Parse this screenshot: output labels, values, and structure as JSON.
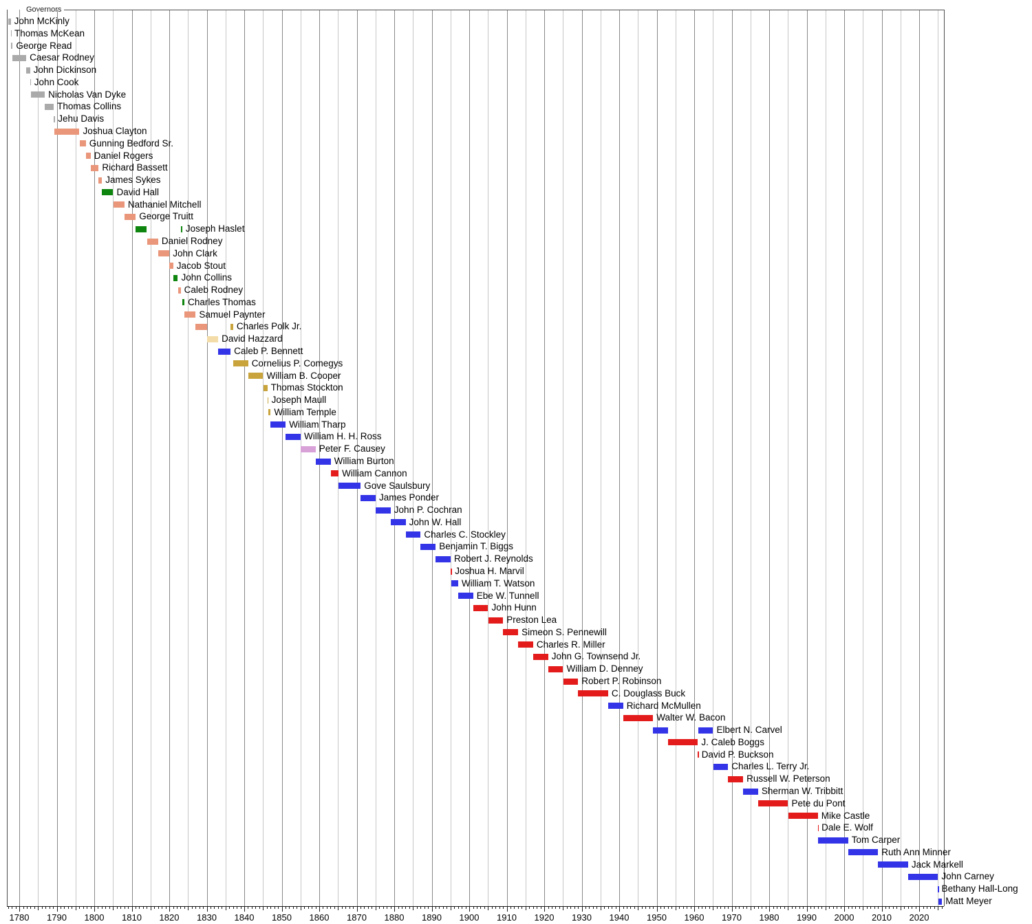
{
  "chart_data": {
    "type": "timeline",
    "title": "Governors",
    "xlabel": "",
    "ylabel": "",
    "x_axis": {
      "min": 1776.7,
      "max": 2026.6,
      "grid_step": 5,
      "minor_tick_step": 1,
      "label_step": 10,
      "tick_labels": [
        "1780",
        "1790",
        "1800",
        "1810",
        "1820",
        "1830",
        "1840",
        "1850",
        "1860",
        "1870",
        "1880",
        "1890",
        "1900",
        "1910",
        "1920",
        "1930",
        "1940",
        "1950",
        "1960",
        "1970",
        "1980",
        "1990",
        "2000",
        "2010",
        "2020"
      ]
    },
    "party_colors": {
      "pre_party": "#AAAAAA",
      "federalist": "#E9967A",
      "democratic_republican": "#0E850E",
      "whig": "#C9A43C",
      "national_republican": "#F3DCA8",
      "democratic": "#3333E8",
      "american": "#D8A2D8",
      "republican": "#E41B1B"
    },
    "grid_colors": {
      "decade": "#888888",
      "half_decade": "#C6C6C6"
    },
    "governors": [
      {
        "name": "John McKinly",
        "terms": [
          {
            "start": 1777.12,
            "end": 1777.72,
            "party": "pre_party"
          }
        ]
      },
      {
        "name": "Thomas McKean",
        "terms": [
          {
            "start": 1777.72,
            "end": 1777.8,
            "party": "pre_party"
          }
        ]
      },
      {
        "name": "George Read",
        "terms": [
          {
            "start": 1777.8,
            "end": 1778.24,
            "party": "pre_party"
          }
        ]
      },
      {
        "name": "Caesar Rodney",
        "terms": [
          {
            "start": 1778.24,
            "end": 1781.85,
            "party": "pre_party"
          }
        ]
      },
      {
        "name": "John Dickinson",
        "terms": [
          {
            "start": 1781.85,
            "end": 1782.86,
            "party": "pre_party"
          }
        ]
      },
      {
        "name": "John Cook",
        "terms": [
          {
            "start": 1782.86,
            "end": 1783.09,
            "party": "pre_party"
          }
        ]
      },
      {
        "name": "Nicholas Van Dyke",
        "terms": [
          {
            "start": 1783.09,
            "end": 1786.8,
            "party": "pre_party"
          }
        ]
      },
      {
        "name": "Thomas Collins",
        "terms": [
          {
            "start": 1786.8,
            "end": 1789.2,
            "party": "pre_party"
          }
        ]
      },
      {
        "name": "Jehu Davis",
        "terms": [
          {
            "start": 1789.2,
            "end": 1789.42,
            "party": "pre_party"
          }
        ]
      },
      {
        "name": "Joshua Clayton",
        "terms": [
          {
            "start": 1789.42,
            "end": 1796.05,
            "party": "federalist"
          }
        ]
      },
      {
        "name": "Gunning Bedford Sr.",
        "terms": [
          {
            "start": 1796.05,
            "end": 1797.75,
            "party": "federalist"
          }
        ]
      },
      {
        "name": "Daniel Rogers",
        "terms": [
          {
            "start": 1797.75,
            "end": 1799.05,
            "party": "federalist"
          }
        ]
      },
      {
        "name": "Richard Bassett",
        "terms": [
          {
            "start": 1799.05,
            "end": 1801.17,
            "party": "federalist"
          }
        ]
      },
      {
        "name": "James Sykes",
        "terms": [
          {
            "start": 1801.17,
            "end": 1802.05,
            "party": "federalist"
          }
        ]
      },
      {
        "name": "David Hall",
        "terms": [
          {
            "start": 1802.05,
            "end": 1805.05,
            "party": "democratic_republican"
          }
        ]
      },
      {
        "name": "Nathaniel Mitchell",
        "terms": [
          {
            "start": 1805.05,
            "end": 1808.05,
            "party": "federalist"
          }
        ]
      },
      {
        "name": "George Truitt",
        "terms": [
          {
            "start": 1808.05,
            "end": 1811.05,
            "party": "federalist"
          }
        ]
      },
      {
        "name": "Joseph Haslet",
        "terms": [
          {
            "start": 1811.05,
            "end": 1814.05,
            "party": "democratic_republican"
          },
          {
            "start": 1823.05,
            "end": 1823.47,
            "party": "democratic_republican"
          }
        ]
      },
      {
        "name": "Daniel Rodney",
        "terms": [
          {
            "start": 1814.05,
            "end": 1817.05,
            "party": "federalist"
          }
        ]
      },
      {
        "name": "John Clark",
        "terms": [
          {
            "start": 1817.05,
            "end": 1820.05,
            "party": "federalist"
          }
        ]
      },
      {
        "name": "Jacob Stout",
        "terms": [
          {
            "start": 1820.05,
            "end": 1821.05,
            "party": "federalist"
          }
        ]
      },
      {
        "name": "John Collins",
        "terms": [
          {
            "start": 1821.05,
            "end": 1822.29,
            "party": "democratic_republican"
          }
        ]
      },
      {
        "name": "Caleb Rodney",
        "terms": [
          {
            "start": 1822.29,
            "end": 1823.05,
            "party": "federalist"
          }
        ]
      },
      {
        "name": "Charles Thomas",
        "terms": [
          {
            "start": 1823.47,
            "end": 1824.05,
            "party": "democratic_republican"
          }
        ]
      },
      {
        "name": "Samuel Paynter",
        "terms": [
          {
            "start": 1824.05,
            "end": 1827.05,
            "party": "federalist"
          }
        ]
      },
      {
        "name": "Charles Polk Jr.",
        "terms": [
          {
            "start": 1827.05,
            "end": 1830.05,
            "party": "federalist"
          },
          {
            "start": 1836.35,
            "end": 1837.05,
            "party": "whig"
          }
        ]
      },
      {
        "name": "David Hazzard",
        "terms": [
          {
            "start": 1830.05,
            "end": 1833.05,
            "party": "national_republican"
          }
        ]
      },
      {
        "name": "Caleb P. Bennett",
        "terms": [
          {
            "start": 1833.05,
            "end": 1836.34,
            "party": "democratic"
          }
        ]
      },
      {
        "name": "Cornelius P. Comegys",
        "terms": [
          {
            "start": 1837.05,
            "end": 1841.05,
            "party": "whig"
          }
        ]
      },
      {
        "name": "William B. Cooper",
        "terms": [
          {
            "start": 1841.05,
            "end": 1845.05,
            "party": "whig"
          }
        ]
      },
      {
        "name": "Thomas Stockton",
        "terms": [
          {
            "start": 1845.05,
            "end": 1846.17,
            "party": "whig"
          }
        ]
      },
      {
        "name": "Joseph Maull",
        "terms": [
          {
            "start": 1846.17,
            "end": 1846.34,
            "party": "whig"
          }
        ]
      },
      {
        "name": "William Temple",
        "terms": [
          {
            "start": 1846.34,
            "end": 1847.05,
            "party": "whig"
          }
        ]
      },
      {
        "name": "William Tharp",
        "terms": [
          {
            "start": 1847.05,
            "end": 1851.05,
            "party": "democratic"
          }
        ]
      },
      {
        "name": "William H. H. Ross",
        "terms": [
          {
            "start": 1851.05,
            "end": 1855.05,
            "party": "democratic"
          }
        ]
      },
      {
        "name": "Peter F. Causey",
        "terms": [
          {
            "start": 1855.05,
            "end": 1859.05,
            "party": "american"
          }
        ]
      },
      {
        "name": "William Burton",
        "terms": [
          {
            "start": 1859.05,
            "end": 1863.05,
            "party": "democratic"
          }
        ]
      },
      {
        "name": "William Cannon",
        "terms": [
          {
            "start": 1863.05,
            "end": 1865.16,
            "party": "republican"
          }
        ]
      },
      {
        "name": "Gove Saulsbury",
        "terms": [
          {
            "start": 1865.16,
            "end": 1871.05,
            "party": "democratic"
          }
        ]
      },
      {
        "name": "James Ponder",
        "terms": [
          {
            "start": 1871.05,
            "end": 1875.05,
            "party": "democratic"
          }
        ]
      },
      {
        "name": "John P. Cochran",
        "terms": [
          {
            "start": 1875.05,
            "end": 1879.05,
            "party": "democratic"
          }
        ]
      },
      {
        "name": "John W. Hall",
        "terms": [
          {
            "start": 1879.05,
            "end": 1883.05,
            "party": "democratic"
          }
        ]
      },
      {
        "name": "Charles C. Stockley",
        "terms": [
          {
            "start": 1883.05,
            "end": 1887.05,
            "party": "democratic"
          }
        ]
      },
      {
        "name": "Benjamin T. Biggs",
        "terms": [
          {
            "start": 1887.05,
            "end": 1891.05,
            "party": "democratic"
          }
        ]
      },
      {
        "name": "Robert J. Reynolds",
        "terms": [
          {
            "start": 1891.05,
            "end": 1895.05,
            "party": "democratic"
          }
        ]
      },
      {
        "name": "Joshua H. Marvil",
        "terms": [
          {
            "start": 1895.05,
            "end": 1895.27,
            "party": "republican"
          }
        ]
      },
      {
        "name": "William T. Watson",
        "terms": [
          {
            "start": 1895.27,
            "end": 1897.05,
            "party": "democratic"
          }
        ]
      },
      {
        "name": "Ebe W. Tunnell",
        "terms": [
          {
            "start": 1897.05,
            "end": 1901.05,
            "party": "democratic"
          }
        ]
      },
      {
        "name": "John Hunn",
        "terms": [
          {
            "start": 1901.05,
            "end": 1905.05,
            "party": "republican"
          }
        ]
      },
      {
        "name": "Preston Lea",
        "terms": [
          {
            "start": 1905.05,
            "end": 1909.05,
            "party": "republican"
          }
        ]
      },
      {
        "name": "Simeon S. Pennewill",
        "terms": [
          {
            "start": 1909.05,
            "end": 1913.05,
            "party": "republican"
          }
        ]
      },
      {
        "name": "Charles R. Miller",
        "terms": [
          {
            "start": 1913.05,
            "end": 1917.05,
            "party": "republican"
          }
        ]
      },
      {
        "name": "John G. Townsend Jr.",
        "terms": [
          {
            "start": 1917.05,
            "end": 1921.05,
            "party": "republican"
          }
        ]
      },
      {
        "name": "William D. Denney",
        "terms": [
          {
            "start": 1921.05,
            "end": 1925.05,
            "party": "republican"
          }
        ]
      },
      {
        "name": "Robert P. Robinson",
        "terms": [
          {
            "start": 1925.05,
            "end": 1929.05,
            "party": "republican"
          }
        ]
      },
      {
        "name": "C. Douglass Buck",
        "terms": [
          {
            "start": 1929.05,
            "end": 1937.05,
            "party": "republican"
          }
        ]
      },
      {
        "name": "Richard McMullen",
        "terms": [
          {
            "start": 1937.05,
            "end": 1941.05,
            "party": "democratic"
          }
        ]
      },
      {
        "name": "Walter W. Bacon",
        "terms": [
          {
            "start": 1941.05,
            "end": 1949.05,
            "party": "republican"
          }
        ]
      },
      {
        "name": "Elbert N. Carvel",
        "terms": [
          {
            "start": 1949.05,
            "end": 1953.05,
            "party": "democratic"
          },
          {
            "start": 1961.05,
            "end": 1965.05,
            "party": "democratic"
          }
        ]
      },
      {
        "name": "J. Caleb Boggs",
        "terms": [
          {
            "start": 1953.05,
            "end": 1960.99,
            "party": "republican"
          }
        ]
      },
      {
        "name": "David P. Buckson",
        "terms": [
          {
            "start": 1960.99,
            "end": 1961.05,
            "party": "republican"
          }
        ]
      },
      {
        "name": "Charles L. Terry Jr.",
        "terms": [
          {
            "start": 1965.05,
            "end": 1969.05,
            "party": "democratic"
          }
        ]
      },
      {
        "name": "Russell W. Peterson",
        "terms": [
          {
            "start": 1969.05,
            "end": 1973.05,
            "party": "republican"
          }
        ]
      },
      {
        "name": "Sherman W. Tribbitt",
        "terms": [
          {
            "start": 1973.05,
            "end": 1977.05,
            "party": "democratic"
          }
        ]
      },
      {
        "name": "Pete du Pont",
        "terms": [
          {
            "start": 1977.05,
            "end": 1985.05,
            "party": "republican"
          }
        ]
      },
      {
        "name": "Mike Castle",
        "terms": [
          {
            "start": 1985.05,
            "end": 1992.99,
            "party": "republican"
          }
        ]
      },
      {
        "name": "Dale E. Wolf",
        "terms": [
          {
            "start": 1992.99,
            "end": 1993.05,
            "party": "republican"
          }
        ]
      },
      {
        "name": "Tom Carper",
        "terms": [
          {
            "start": 1993.05,
            "end": 2001.05,
            "party": "democratic"
          }
        ]
      },
      {
        "name": "Ruth Ann Minner",
        "terms": [
          {
            "start": 2001.05,
            "end": 2009.05,
            "party": "democratic"
          }
        ]
      },
      {
        "name": "Jack Markell",
        "terms": [
          {
            "start": 2009.05,
            "end": 2017.05,
            "party": "democratic"
          }
        ]
      },
      {
        "name": "John Carney",
        "terms": [
          {
            "start": 2017.05,
            "end": 2025.02,
            "party": "democratic"
          }
        ]
      },
      {
        "name": "Bethany Hall-Long",
        "terms": [
          {
            "start": 2025.02,
            "end": 2025.06,
            "party": "democratic"
          }
        ]
      },
      {
        "name": "Matt Meyer",
        "terms": [
          {
            "start": 2025.06,
            "end": 2026.1,
            "party": "democratic"
          }
        ]
      }
    ]
  }
}
